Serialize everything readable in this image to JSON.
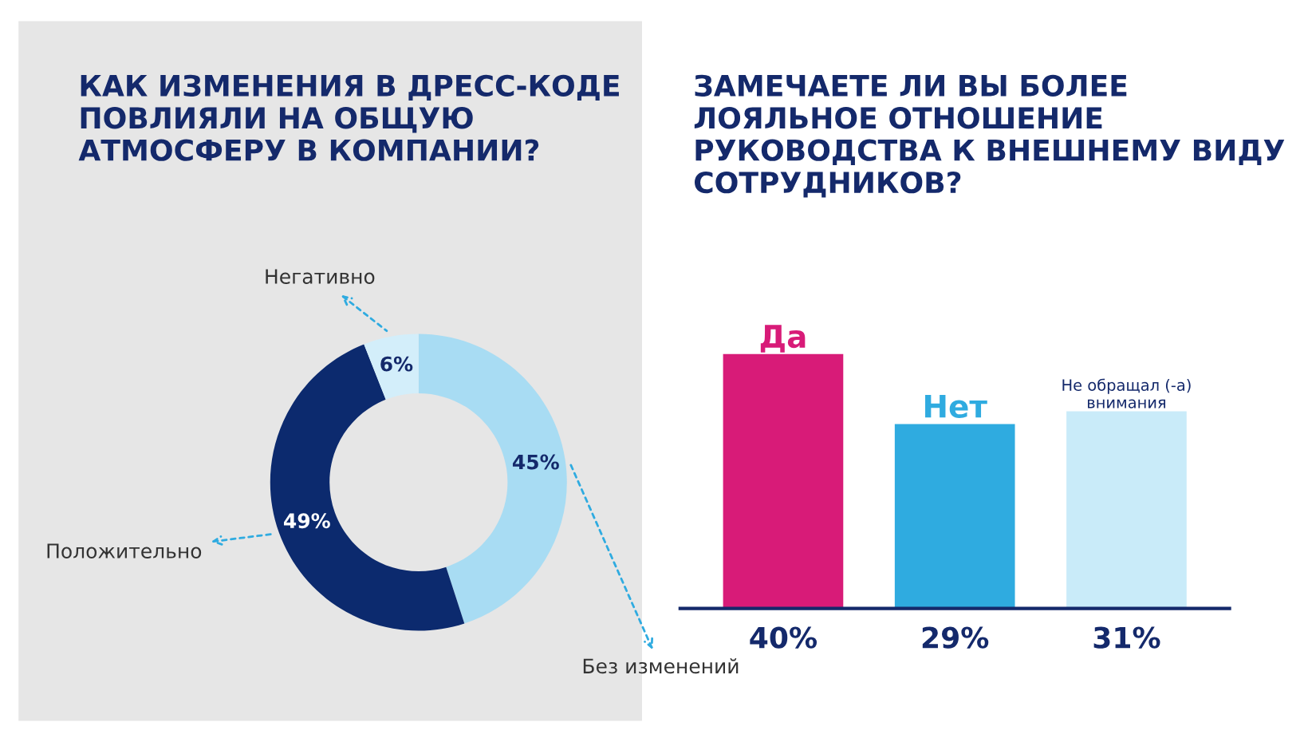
{
  "chart_data": [
    {
      "type": "donut",
      "title": "КАК ИЗМЕНЕНИЯ В ДРЕСС-КОДЕ\nПОВЛИЯЛИ НА ОБЩУЮ\nАТМОСФЕРУ В КОМПАНИИ?",
      "categories": [
        "Без изменений",
        "Положительно",
        "Негативно"
      ],
      "values": [
        45,
        49,
        6
      ],
      "colors": [
        "#a8dcf3",
        "#0c2a6e",
        "#d3eefa"
      ],
      "value_labels": [
        "45%",
        "49%",
        "6%"
      ]
    },
    {
      "type": "bar",
      "title": "ЗАМЕЧАЕТЕ ЛИ ВЫ БОЛЕЕ\nЛОЯЛЬНОЕ ОТНОШЕНИЕ\nРУКОВОДСТВА К ВНЕШНЕМУ ВИДУ\nСОТРУДНИКОВ?",
      "categories": [
        "Да",
        "Нет",
        "Не обращал (-а)\nвнимания"
      ],
      "values": [
        40,
        29,
        31
      ],
      "colors": [
        "#d81b78",
        "#2fabe0",
        "#c9ebf9"
      ],
      "value_labels": [
        "40%",
        "29%",
        "31%"
      ]
    }
  ]
}
